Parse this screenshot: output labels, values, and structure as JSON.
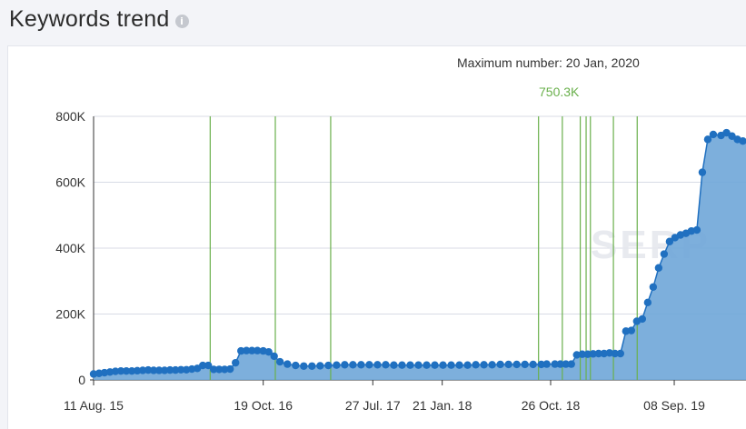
{
  "header": {
    "title": "Keywords trend",
    "info_icon": "info-icon"
  },
  "annotation": {
    "max_label": "Maximum number: 20 Jan, 2020",
    "max_value": "750.3K"
  },
  "watermark": "SERP",
  "colors": {
    "line": "#2070c0",
    "area": "#6fa6d8",
    "marker": "#2070c0",
    "event_line": "#6ab04c",
    "grid": "#d8dbe6",
    "max_value": "#6ab04c"
  },
  "chart_data": {
    "type": "area",
    "ylim": [
      0,
      800000
    ],
    "yticks": [
      0,
      200000,
      400000,
      600000,
      800000
    ],
    "ytick_labels": [
      "0",
      "200K",
      "400K",
      "600K",
      "800K"
    ],
    "xlim": [
      "2015-08-11",
      "2020-03-10"
    ],
    "xticks": [
      "2015-08-11",
      "2016-10-19",
      "2017-07-27",
      "2018-01-21",
      "2018-10-26",
      "2019-09-08"
    ],
    "xtick_labels": [
      "11 Aug. 15",
      "19 Oct. 16",
      "27 Jul. 17",
      "21 Jan. 18",
      "26 Oct. 18",
      "08 Sep. 19"
    ],
    "grid": true,
    "series": [
      {
        "x": [
          "2015-08-11",
          "2015-08-25",
          "2015-09-08",
          "2015-09-22",
          "2015-10-06",
          "2015-10-20",
          "2015-11-03",
          "2015-11-17",
          "2015-12-01",
          "2015-12-15",
          "2015-12-29",
          "2016-01-12",
          "2016-01-26",
          "2016-02-09",
          "2016-02-23",
          "2016-03-08",
          "2016-03-22",
          "2016-04-05",
          "2016-04-19",
          "2016-05-03",
          "2016-05-17",
          "2016-05-31",
          "2016-06-14",
          "2016-06-28",
          "2016-07-12",
          "2016-07-26",
          "2016-08-09",
          "2016-08-23",
          "2016-09-06",
          "2016-09-20",
          "2016-10-04",
          "2016-10-19",
          "2016-11-02",
          "2016-11-16",
          "2016-12-01",
          "2016-12-20",
          "2017-01-10",
          "2017-01-31",
          "2017-02-21",
          "2017-03-14",
          "2017-04-04",
          "2017-04-25",
          "2017-05-16",
          "2017-06-06",
          "2017-06-27",
          "2017-07-18",
          "2017-08-08",
          "2017-08-29",
          "2017-09-19",
          "2017-10-10",
          "2017-10-31",
          "2017-11-21",
          "2017-12-12",
          "2018-01-02",
          "2018-01-23",
          "2018-02-13",
          "2018-03-06",
          "2018-03-27",
          "2018-04-17",
          "2018-05-08",
          "2018-05-29",
          "2018-06-19",
          "2018-07-10",
          "2018-07-31",
          "2018-08-21",
          "2018-09-11",
          "2018-10-02",
          "2018-10-16",
          "2018-11-06",
          "2018-11-20",
          "2018-12-04",
          "2018-12-18",
          "2019-01-01",
          "2019-01-15",
          "2019-01-29",
          "2019-02-12",
          "2019-02-26",
          "2019-03-12",
          "2019-03-26",
          "2019-04-09",
          "2019-04-23",
          "2019-05-07",
          "2019-05-21",
          "2019-06-04",
          "2019-06-18",
          "2019-07-02",
          "2019-07-16",
          "2019-07-30",
          "2019-08-13",
          "2019-08-27",
          "2019-09-10",
          "2019-09-24",
          "2019-10-08",
          "2019-10-22",
          "2019-11-05",
          "2019-11-19",
          "2019-12-03",
          "2019-12-17",
          "2020-01-06",
          "2020-01-20",
          "2020-02-03",
          "2020-02-17",
          "2020-03-02"
        ],
        "y": [
          18000,
          20000,
          22000,
          24000,
          26000,
          27000,
          27000,
          27000,
          28000,
          29000,
          30000,
          29000,
          29000,
          29000,
          30000,
          30000,
          31000,
          31000,
          33000,
          35000,
          44000,
          44000,
          32000,
          32000,
          32000,
          33000,
          52000,
          88000,
          89000,
          89000,
          89000,
          88000,
          85000,
          72000,
          55000,
          48000,
          44000,
          42000,
          42000,
          43000,
          44000,
          45000,
          46000,
          46000,
          46000,
          46000,
          46000,
          46000,
          45000,
          45000,
          45000,
          45000,
          45000,
          45000,
          45000,
          45000,
          45000,
          45000,
          46000,
          46000,
          46000,
          47000,
          47000,
          47000,
          47000,
          47000,
          47000,
          48000,
          48000,
          48000,
          48000,
          48000,
          76000,
          78000,
          78000,
          79000,
          80000,
          80000,
          82000,
          80000,
          80000,
          148000,
          150000,
          178000,
          185000,
          235000,
          282000,
          340000,
          382000,
          420000,
          432000,
          440000,
          445000,
          452000,
          455000,
          630000,
          730000,
          745000,
          742000,
          750300,
          740000,
          730000,
          725000
        ]
      }
    ],
    "event_lines": [
      "2016-06-05",
      "2016-11-19",
      "2017-04-10",
      "2018-09-25",
      "2018-11-25",
      "2019-01-10",
      "2019-01-25",
      "2019-02-05",
      "2019-04-05",
      "2019-06-05"
    ]
  }
}
